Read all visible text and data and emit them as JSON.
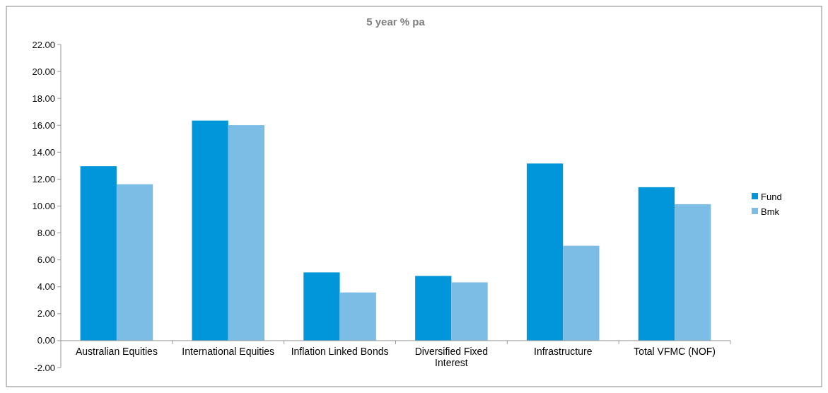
{
  "chart_data": {
    "type": "bar",
    "title": "5 year % pa",
    "categories": [
      "Australian Equities",
      "International Equities",
      "Inflation Linked Bonds",
      "Diversified Fixed Interest",
      "Infrastructure",
      "Total VFMC (NOF)"
    ],
    "series": [
      {
        "name": "Fund",
        "color": "#0096d9",
        "values": [
          12.96,
          16.35,
          5.07,
          4.81,
          13.16,
          11.4
        ]
      },
      {
        "name": "Bmk",
        "color": "#7bbde5",
        "values": [
          11.62,
          16.01,
          3.58,
          4.33,
          7.05,
          10.14
        ]
      }
    ],
    "ylim": [
      -2,
      22
    ],
    "yticks": [
      {
        "value": -2,
        "label": "-2.00"
      },
      {
        "value": 0,
        "label": "0.00"
      },
      {
        "value": 2,
        "label": "2.00"
      },
      {
        "value": 4,
        "label": "4.00"
      },
      {
        "value": 6,
        "label": "6.00"
      },
      {
        "value": 8,
        "label": "8.00"
      },
      {
        "value": 10,
        "label": "10.00"
      },
      {
        "value": 12,
        "label": "12.00"
      },
      {
        "value": 14,
        "label": "14.00"
      },
      {
        "value": 16,
        "label": "16.00"
      },
      {
        "value": 18,
        "label": "18.00"
      },
      {
        "value": 20,
        "label": "20.00"
      },
      {
        "value": 22,
        "label": "22.00"
      }
    ],
    "grid": false,
    "legend": "right"
  }
}
